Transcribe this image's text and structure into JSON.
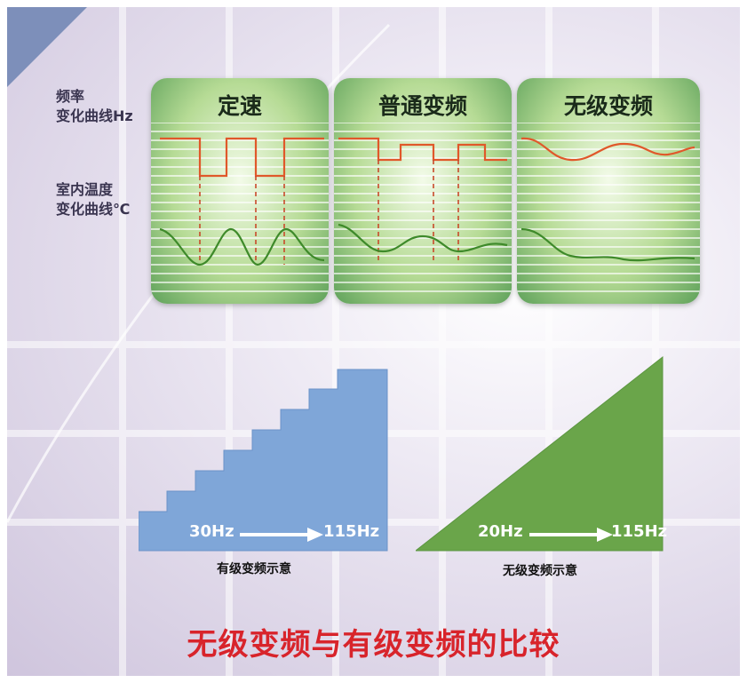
{
  "top_chart": {
    "row_labels": {
      "frequency": [
        "频率",
        "变化曲线Hz"
      ],
      "temperature": [
        "室内温度",
        "变化曲线℃"
      ]
    },
    "panels": [
      {
        "title": "定速"
      },
      {
        "title": "普通变频"
      },
      {
        "title": "无级变频"
      }
    ]
  },
  "stepped": {
    "from": "30Hz",
    "to": "115Hz",
    "caption": "有级变频示意"
  },
  "stepless": {
    "from": "20Hz",
    "to": "115Hz",
    "caption": "无级变频示意"
  },
  "headline": "无级变频与有级变频的比较",
  "colors": {
    "frequency_curve": "#e0582a",
    "temperature_curve": "#3e8a2a",
    "marker_line": "#c84a2a",
    "stepped_fill": "#7fa6d8",
    "stepless_fill": "#6aa54a",
    "headline": "#d8242b"
  }
}
